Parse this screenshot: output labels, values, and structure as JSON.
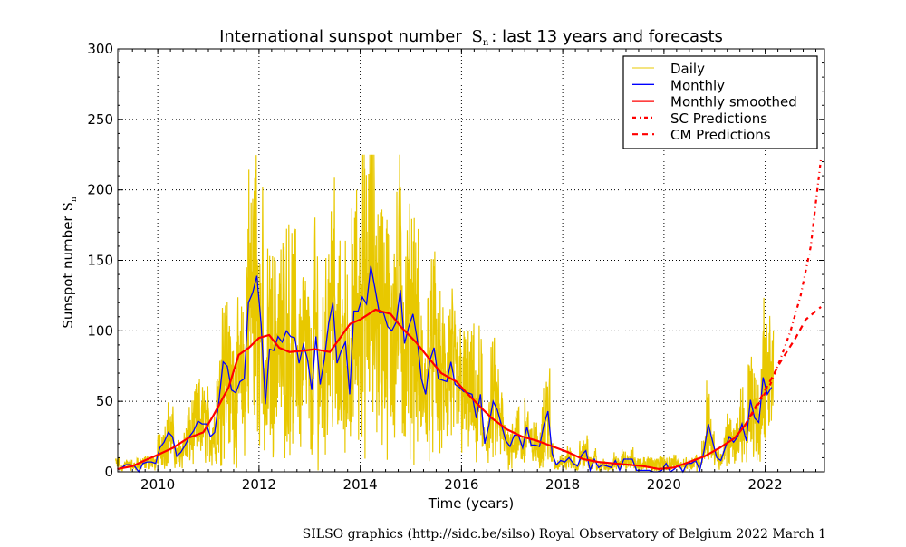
{
  "chart_data": {
    "type": "line",
    "title": "International sunspot number",
    "title_symbol": "S",
    "title_symbol_sub": "n",
    "title_suffix": ": last 13 years and forecasts",
    "xlabel": "Time (years)",
    "ylabel": "Sunspot number",
    "ylabel_symbol": "S",
    "ylabel_symbol_sub": "n",
    "xlim": [
      2009.21,
      2023.17
    ],
    "ylim": [
      0,
      300
    ],
    "xticks": [
      2010,
      2012,
      2014,
      2016,
      2018,
      2020,
      2022
    ],
    "yticks": [
      0,
      50,
      100,
      150,
      200,
      250,
      300
    ],
    "grid": true,
    "legend_position": "top-right",
    "legend": [
      {
        "label": "Daily",
        "color": "#e8c800",
        "style": "thin"
      },
      {
        "label": "Monthly",
        "color": "#0000ff",
        "style": "solid"
      },
      {
        "label": "Monthly smoothed",
        "color": "#ff0000",
        "style": "thick"
      },
      {
        "label": "SC Predictions",
        "color": "#ff0000",
        "style": "dashdot"
      },
      {
        "label": "CM Predictions",
        "color": "#ff0000",
        "style": "dashed"
      }
    ],
    "monthly_start": 2009.208,
    "monthly": [
      1.5,
      3,
      5,
      5,
      4,
      0,
      6,
      7,
      7,
      6,
      17,
      21,
      28,
      25,
      11,
      14,
      19,
      25,
      29,
      36,
      34,
      34,
      25,
      28,
      50,
      78,
      75,
      58,
      56,
      64,
      66,
      120,
      127,
      139,
      105,
      48,
      87,
      86,
      96,
      92,
      100,
      96,
      95,
      77,
      90,
      80,
      58,
      96,
      62,
      80,
      105,
      120,
      77,
      86,
      92,
      55,
      114,
      114,
      124,
      119,
      146,
      130,
      113,
      113,
      103,
      100,
      106,
      129,
      91,
      103,
      112,
      94,
      66,
      55,
      79,
      88,
      66,
      65,
      64,
      78,
      62,
      60,
      57,
      56,
      55,
      38,
      55,
      20,
      33,
      50,
      44,
      33,
      22,
      18,
      26,
      26,
      17,
      32,
      19,
      19,
      18,
      33,
      43,
      13,
      5,
      8,
      7,
      10,
      6,
      4,
      12,
      15,
      1,
      9,
      3,
      5,
      4,
      3,
      8,
      1,
      9,
      9,
      9,
      1,
      1,
      1,
      1,
      0,
      0,
      1,
      6,
      0,
      2,
      5,
      0,
      6,
      6,
      8,
      1,
      15,
      34,
      22,
      10,
      8,
      17,
      25,
      21,
      25,
      34,
      22,
      51,
      38,
      35,
      67,
      55,
      60
    ],
    "smoothed": [
      [
        2009.2,
        2
      ],
      [
        2009.5,
        4
      ],
      [
        2009.8,
        9
      ],
      [
        2010.0,
        12
      ],
      [
        2010.3,
        17
      ],
      [
        2010.6,
        24
      ],
      [
        2010.9,
        28
      ],
      [
        2011.1,
        40
      ],
      [
        2011.4,
        60
      ],
      [
        2011.6,
        83
      ],
      [
        2011.8,
        88
      ],
      [
        2012.0,
        95
      ],
      [
        2012.2,
        97
      ],
      [
        2012.4,
        88
      ],
      [
        2012.6,
        85
      ],
      [
        2012.9,
        86
      ],
      [
        2013.1,
        87
      ],
      [
        2013.4,
        85
      ],
      [
        2013.6,
        95
      ],
      [
        2013.8,
        105
      ],
      [
        2014.0,
        108
      ],
      [
        2014.3,
        115
      ],
      [
        2014.6,
        112
      ],
      [
        2014.8,
        103
      ],
      [
        2015.1,
        92
      ],
      [
        2015.3,
        83
      ],
      [
        2015.6,
        70
      ],
      [
        2015.9,
        64
      ],
      [
        2016.1,
        56
      ],
      [
        2016.4,
        45
      ],
      [
        2016.6,
        38
      ],
      [
        2016.9,
        30
      ],
      [
        2017.2,
        25
      ],
      [
        2017.5,
        22
      ],
      [
        2017.8,
        18
      ],
      [
        2018.1,
        14
      ],
      [
        2018.4,
        9
      ],
      [
        2018.7,
        7
      ],
      [
        2019.0,
        6
      ],
      [
        2019.3,
        5
      ],
      [
        2019.6,
        4
      ],
      [
        2019.9,
        2
      ],
      [
        2020.2,
        3
      ],
      [
        2020.5,
        7
      ],
      [
        2020.8,
        11
      ],
      [
        2021.1,
        17
      ],
      [
        2021.4,
        24
      ],
      [
        2021.6,
        33
      ]
    ],
    "sc_predictions": [
      [
        2021.6,
        33
      ],
      [
        2021.9,
        50
      ],
      [
        2022.1,
        62
      ],
      [
        2022.3,
        80
      ],
      [
        2022.5,
        100
      ],
      [
        2022.7,
        125
      ],
      [
        2022.9,
        160
      ],
      [
        2023.1,
        222
      ]
    ],
    "cm_predictions": [
      [
        2021.6,
        33
      ],
      [
        2022.0,
        58
      ],
      [
        2022.3,
        78
      ],
      [
        2022.6,
        95
      ],
      [
        2022.8,
        108
      ],
      [
        2023.1,
        117
      ]
    ]
  },
  "footer": "SILSO graphics (http://sidc.be/silso)  Royal Observatory of Belgium  2022 March 1"
}
